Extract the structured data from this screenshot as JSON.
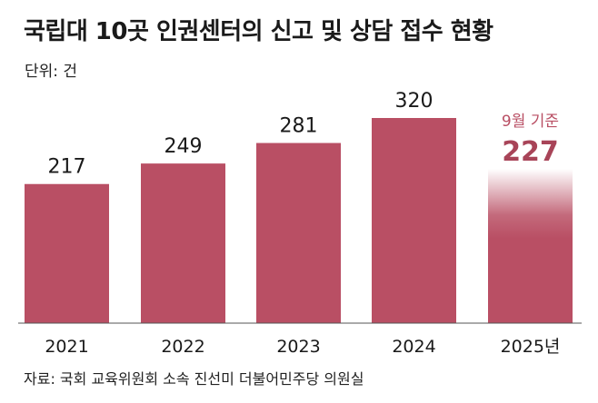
{
  "chart_data": {
    "type": "bar",
    "title": "국립대 10곳 인권센터의 신고 및 상담 접수 현황",
    "unit_label": "단위: 건",
    "categories": [
      "2021",
      "2022",
      "2023",
      "2024",
      "2025년"
    ],
    "values": [
      217,
      249,
      281,
      320,
      227
    ],
    "value_labels": [
      "217",
      "249",
      "281",
      "320",
      "227"
    ],
    "annotation": "9월 기준",
    "ylim": [
      0,
      320
    ],
    "grid": false,
    "colors": {
      "bar": "#b94f64",
      "highlight_text": "#a84458",
      "annotation_text": "#b94f64"
    },
    "source": "자료: 국회 교육위원회 소속 진선미 더불어민주당 의원실"
  }
}
